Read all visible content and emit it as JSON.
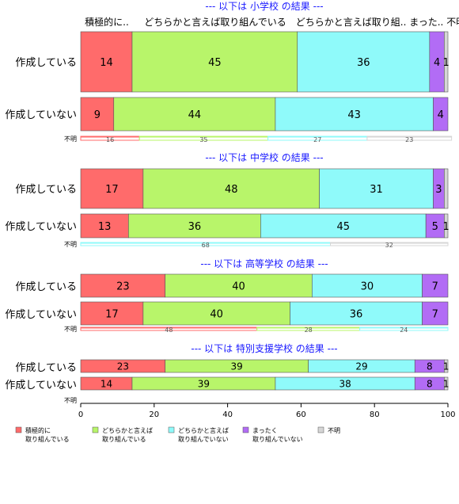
{
  "chart_data": {
    "type": "bar",
    "orientation": "horizontal",
    "stacked": "percent",
    "xlim": [
      0,
      100
    ],
    "x_ticks": [
      "0",
      "20",
      "40",
      "60",
      "80",
      "100"
    ],
    "header_labels": [
      "積極的に..",
      "どちらかと言えば取り組んでいる",
      "どちらかと言えば取り組.. まった.. 不明"
    ],
    "series": [
      {
        "name": "積極的に\n取り組んでいる",
        "color": "#FF6B6B"
      },
      {
        "name": "どちらかと言えば\n取り組んでいる",
        "color": "#B8F56A"
      },
      {
        "name": "どちらかと言えば\n取り組んでいない",
        "color": "#8FFAFA"
      },
      {
        "name": "まったく\n取り組んでいない",
        "color": "#B26CF5"
      },
      {
        "name": "不明",
        "color": "#D6D6D6"
      }
    ],
    "panels": [
      {
        "title": "--- 以下は 小学校 の結果 ---",
        "rows": [
          {
            "category": "作成している",
            "values": [
              14,
              45,
              36,
              4,
              1
            ],
            "labels": [
              "14",
              "45",
              "36",
              "4",
              "1"
            ]
          },
          {
            "category": "作成していない",
            "values": [
              9,
              44,
              43,
              4,
              0
            ],
            "labels": [
              "9",
              "44",
              "43",
              "4",
              ""
            ]
          },
          {
            "category": "不明",
            "values": [
              16,
              35,
              27,
              0,
              23
            ],
            "labels": [
              "16",
              "35",
              "27",
              "",
              "23"
            ],
            "thin": true
          }
        ]
      },
      {
        "title": "--- 以下は 中学校 の結果 ---",
        "rows": [
          {
            "category": "作成している",
            "values": [
              17,
              48,
              31,
              3,
              1
            ],
            "labels": [
              "17",
              "48",
              "31",
              "3",
              ""
            ]
          },
          {
            "category": "作成していない",
            "values": [
              13,
              36,
              45,
              5,
              1
            ],
            "labels": [
              "13",
              "36",
              "45",
              "5",
              "1"
            ]
          },
          {
            "category": "不明",
            "values": [
              0,
              0,
              68,
              0,
              32
            ],
            "labels": [
              "",
              "",
              "68",
              "",
              "32"
            ],
            "thin": true
          }
        ]
      },
      {
        "title": "--- 以下は 高等学校 の結果 ---",
        "rows": [
          {
            "category": "作成している",
            "values": [
              23,
              40,
              30,
              7,
              0
            ],
            "labels": [
              "23",
              "40",
              "30",
              "7",
              ""
            ]
          },
          {
            "category": "作成していない",
            "values": [
              17,
              40,
              36,
              7,
              0
            ],
            "labels": [
              "17",
              "40",
              "36",
              "7",
              ""
            ]
          },
          {
            "category": "不明",
            "values": [
              48,
              28,
              24,
              0,
              0
            ],
            "labels": [
              "48",
              "28",
              "24",
              "",
              ""
            ],
            "thin": true
          }
        ]
      },
      {
        "title": "--- 以下は 特別支援学校 の結果 ---",
        "rows": [
          {
            "category": "作成している",
            "values": [
              23,
              39,
              29,
              8,
              1
            ],
            "labels": [
              "23",
              "39",
              "29",
              "8",
              "1"
            ]
          },
          {
            "category": "作成していない",
            "values": [
              14,
              39,
              38,
              8,
              1
            ],
            "labels": [
              "14",
              "39",
              "38",
              "8",
              "1"
            ]
          },
          {
            "category": "不明",
            "values": [
              0,
              0,
              0,
              0,
              0
            ],
            "labels": [
              "",
              "",
              "",
              "",
              ""
            ],
            "thin": true
          }
        ]
      }
    ]
  }
}
